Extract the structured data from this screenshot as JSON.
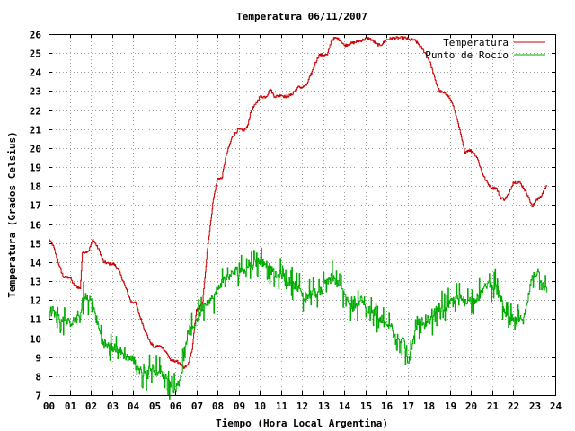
{
  "chart_data": {
    "type": "line",
    "title": "Temperatura 06/11/2007",
    "xlabel": "Tiempo (Hora Local Argentina)",
    "ylabel": "Temperatura (Grados Celsius)",
    "xlim": [
      0,
      24
    ],
    "ylim": [
      7,
      26
    ],
    "grid": true,
    "legend_position": "top-right",
    "x_ticks": [
      "00",
      "01",
      "02",
      "03",
      "04",
      "05",
      "06",
      "07",
      "08",
      "09",
      "10",
      "11",
      "12",
      "13",
      "14",
      "15",
      "16",
      "17",
      "18",
      "19",
      "20",
      "21",
      "22",
      "23",
      "24"
    ],
    "y_ticks": [
      "7",
      "8",
      "9",
      "10",
      "11",
      "12",
      "13",
      "14",
      "15",
      "16",
      "17",
      "18",
      "19",
      "20",
      "21",
      "22",
      "23",
      "24",
      "25",
      "26"
    ],
    "series": [
      {
        "name": "Temperatura",
        "color": "#cc0000",
        "x": [
          0,
          0.2,
          0.4,
          0.5,
          0.7,
          1.0,
          1.2,
          1.5,
          1.6,
          1.9,
          2.1,
          2.4,
          2.6,
          2.9,
          3.1,
          3.3,
          3.6,
          3.9,
          4.1,
          4.3,
          4.6,
          4.8,
          5.0,
          5.2,
          5.4,
          5.6,
          5.8,
          6.0,
          6.2,
          6.4,
          6.6,
          6.8,
          7.0,
          7.1,
          7.3,
          7.5,
          7.8,
          8.0,
          8.2,
          8.4,
          8.7,
          9.0,
          9.2,
          9.4,
          9.6,
          9.8,
          10.0,
          10.3,
          10.5,
          10.7,
          11.0,
          11.2,
          11.5,
          11.8,
          12.0,
          12.2,
          12.4,
          12.6,
          12.8,
          13.0,
          13.2,
          13.4,
          13.6,
          13.8,
          14.0,
          14.3,
          14.6,
          14.9,
          15.1,
          15.3,
          15.5,
          15.7,
          16.0,
          16.3,
          16.6,
          16.9,
          17.1,
          17.3,
          17.5,
          17.7,
          17.9,
          18.1,
          18.3,
          18.5,
          18.7,
          18.9,
          19.1,
          19.3,
          19.5,
          19.7,
          19.9,
          20.1,
          20.3,
          20.5,
          20.7,
          20.9,
          21.0,
          21.2,
          21.4,
          21.6,
          21.8,
          22.0,
          22.3,
          22.5,
          22.7,
          22.9,
          23.1,
          23.3,
          23.5,
          23.6
        ],
        "y": [
          15.2,
          14.9,
          14.2,
          13.8,
          13.2,
          13.2,
          12.8,
          12.6,
          14.5,
          14.6,
          15.2,
          14.6,
          14.0,
          13.9,
          13.9,
          13.6,
          12.8,
          11.9,
          11.9,
          11.2,
          10.3,
          9.8,
          9.5,
          9.6,
          9.5,
          9.2,
          8.8,
          8.8,
          8.7,
          8.4,
          8.6,
          9.4,
          11.5,
          11.5,
          11.9,
          14.5,
          17.3,
          18.4,
          18.4,
          19.6,
          20.6,
          21.0,
          20.9,
          21.1,
          22.0,
          22.3,
          22.7,
          22.7,
          23.1,
          22.7,
          22.8,
          22.7,
          22.8,
          23.2,
          23.2,
          23.3,
          23.8,
          24.4,
          24.9,
          24.9,
          24.9,
          25.7,
          25.8,
          25.7,
          25.4,
          25.5,
          25.6,
          25.7,
          25.8,
          25.7,
          25.5,
          25.4,
          25.7,
          25.8,
          25.8,
          25.8,
          25.7,
          25.7,
          25.5,
          25.2,
          24.9,
          24.4,
          23.6,
          23.0,
          22.9,
          22.8,
          22.4,
          21.7,
          20.8,
          19.8,
          19.9,
          19.8,
          19.5,
          18.8,
          18.3,
          18.0,
          17.9,
          17.9,
          17.4,
          17.3,
          17.6,
          18.2,
          18.2,
          17.9,
          17.5,
          16.9,
          17.3,
          17.4,
          17.9,
          18.0
        ],
        "jitter": 0.15
      },
      {
        "name": "Punto de Rocío",
        "color": "#00aa00",
        "x": [
          0,
          0.3,
          0.5,
          0.8,
          1.0,
          1.2,
          1.5,
          1.6,
          2.0,
          2.2,
          2.4,
          2.6,
          2.8,
          3.1,
          3.3,
          3.5,
          3.7,
          4.0,
          4.2,
          4.4,
          4.6,
          4.8,
          5.0,
          5.2,
          5.4,
          5.6,
          5.8,
          6.0,
          6.2,
          6.4,
          6.6,
          6.8,
          7.0,
          7.2,
          7.4,
          7.6,
          7.8,
          8.0,
          8.3,
          8.6,
          8.9,
          9.2,
          9.5,
          9.8,
          10.0,
          10.2,
          10.4,
          10.6,
          10.8,
          11.0,
          11.3,
          11.6,
          11.9,
          12.1,
          12.3,
          12.5,
          12.7,
          13.0,
          13.2,
          13.4,
          13.6,
          13.8,
          14.0,
          14.2,
          14.4,
          14.6,
          14.8,
          15.0,
          15.3,
          15.6,
          15.8,
          16.0,
          16.2,
          16.4,
          16.6,
          16.8,
          17.0,
          17.2,
          17.4,
          17.6,
          17.8,
          18.0,
          18.2,
          18.4,
          18.6,
          18.8,
          19.0,
          19.3,
          19.6,
          19.9,
          20.2,
          20.5,
          20.8,
          21.0,
          21.2,
          21.4,
          21.6,
          21.8,
          22.0,
          22.3,
          22.6,
          22.9,
          23.2,
          23.4,
          23.6
        ],
        "y": [
          11.6,
          11.3,
          11.0,
          10.9,
          10.8,
          10.9,
          11.0,
          12.1,
          12.0,
          11.3,
          10.4,
          9.8,
          9.6,
          9.5,
          9.4,
          9.2,
          9.0,
          8.9,
          8.5,
          8.2,
          8.1,
          8.4,
          8.3,
          8.2,
          8.1,
          7.9,
          7.5,
          7.3,
          7.8,
          8.8,
          10.4,
          10.5,
          10.9,
          11.5,
          11.8,
          12.0,
          12.1,
          12.6,
          13.1,
          13.3,
          13.6,
          13.6,
          13.8,
          14.0,
          14.1,
          14.0,
          13.8,
          13.5,
          13.2,
          13.4,
          13.0,
          12.9,
          12.6,
          12.0,
          12.2,
          12.5,
          12.3,
          12.7,
          13.1,
          13.3,
          12.9,
          12.8,
          12.3,
          11.9,
          11.4,
          11.7,
          12.2,
          11.6,
          11.3,
          11.0,
          10.8,
          10.7,
          10.6,
          10.2,
          9.9,
          10.0,
          8.7,
          9.4,
          10.6,
          10.9,
          10.5,
          10.8,
          11.1,
          11.6,
          11.6,
          11.6,
          11.8,
          12.1,
          12.0,
          12.0,
          12.0,
          12.4,
          12.9,
          12.8,
          12.7,
          12.2,
          11.3,
          10.9,
          10.9,
          10.9,
          11.4,
          13.3,
          13.5,
          12.9,
          12.4
        ],
        "jitter": 0.9
      }
    ]
  }
}
